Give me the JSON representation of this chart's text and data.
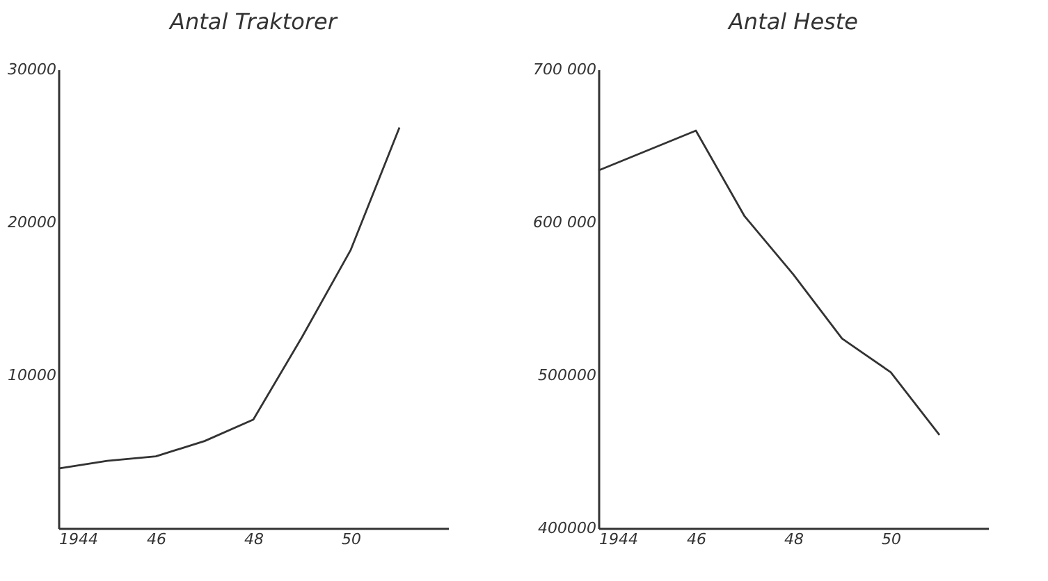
{
  "chart_data": [
    {
      "type": "line",
      "title": "Antal Traktorer",
      "x": [
        1944,
        1945,
        1946,
        1947,
        1948,
        1949,
        1950,
        1951
      ],
      "series": [
        {
          "color": "#333333",
          "values": [
            3900,
            4400,
            4700,
            5700,
            7100,
            12500,
            18200,
            26200
          ]
        }
      ],
      "xlim": [
        1944,
        1952
      ],
      "xticks": [
        {
          "value": 1944,
          "label": "1944"
        },
        {
          "value": 1946,
          "label": "46"
        },
        {
          "value": 1948,
          "label": "48"
        },
        {
          "value": 1950,
          "label": "50"
        }
      ],
      "ylim": [
        0,
        30000
      ],
      "yticks": [
        {
          "value": 0,
          "label": null
        },
        10000,
        20000,
        30000
      ],
      "grid": false,
      "line_style": "solid"
    },
    {
      "type": "line",
      "title": "Antal Heste",
      "x": [
        1944,
        1946,
        1947,
        1948,
        1949,
        1950,
        1951
      ],
      "series": [
        {
          "color": "#333333",
          "values": [
            634000,
            660000,
            604000,
            566000,
            524000,
            502000,
            461000
          ]
        }
      ],
      "xlim": [
        1944,
        1952
      ],
      "xticks": [
        {
          "value": 1944,
          "label": "1944"
        },
        {
          "value": 1946,
          "label": "46"
        },
        {
          "value": 1948,
          "label": "48"
        },
        {
          "value": 1950,
          "label": "50"
        }
      ],
      "ylim": [
        400000,
        700000
      ],
      "yticks": [
        {
          "value": 400000,
          "label": "400000"
        },
        {
          "value": 500000,
          "label": "500000"
        },
        {
          "value": 600000,
          "label": "600 000"
        },
        {
          "value": 700000,
          "label": "700 000"
        }
      ],
      "grid": false,
      "line_style": "solid"
    }
  ]
}
